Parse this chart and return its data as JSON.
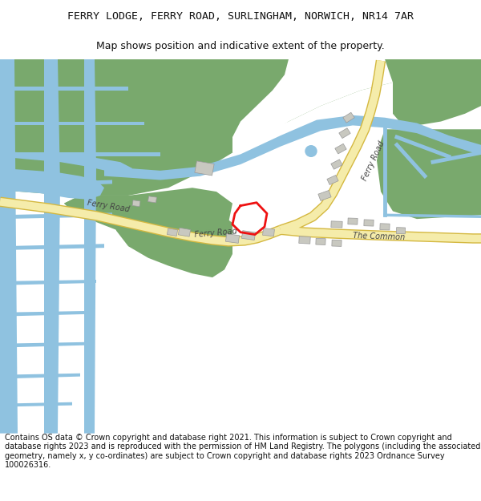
{
  "title_line1": "FERRY LODGE, FERRY ROAD, SURLINGHAM, NORWICH, NR14 7AR",
  "title_line2": "Map shows position and indicative extent of the property.",
  "footer_text": "Contains OS data © Crown copyright and database right 2021. This information is subject to Crown copyright and database rights 2023 and is reproduced with the permission of HM Land Registry. The polygons (including the associated geometry, namely x, y co-ordinates) are subject to Crown copyright and database rights 2023 Ordnance Survey 100026316.",
  "bg_color": "#ffffff",
  "map_bg": "#ffffff",
  "green_color": "#79a96d",
  "blue_color": "#8fc2e0",
  "road_fill": "#f5ecaa",
  "road_border": "#d4b840",
  "building_color": "#c8c8c0",
  "plot_color": "#ee1111",
  "title_fontsize": 9.5,
  "footer_fontsize": 7.0
}
